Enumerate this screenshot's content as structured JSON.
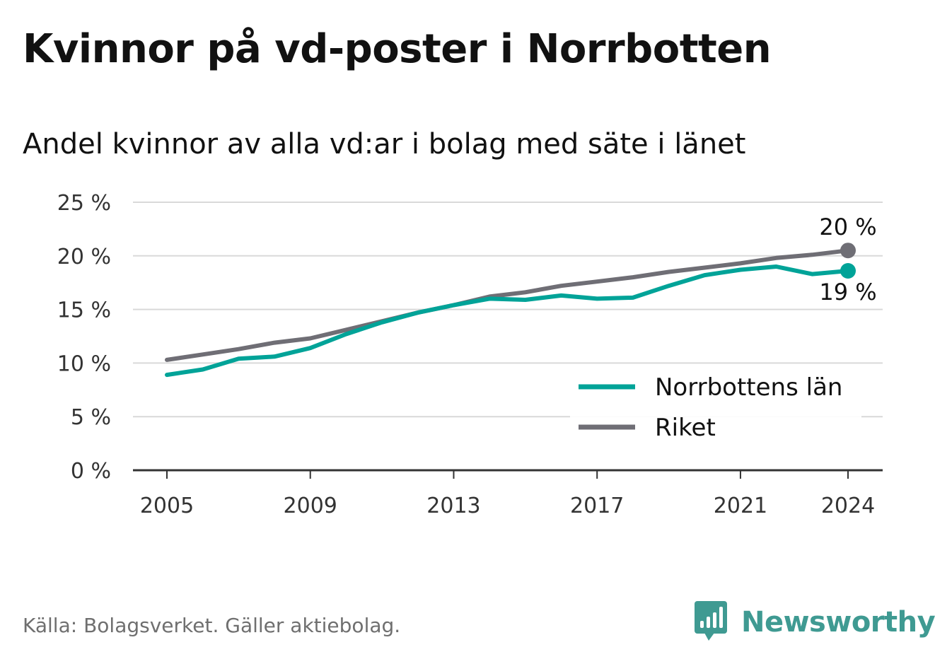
{
  "title": "Kvinnor på vd-poster i Norrbotten",
  "subtitle": "Andel kvinnor av alla vd:ar i bolag med säte i länet",
  "source": "Källa: Bolagsverket. Gäller aktiebolag.",
  "brand": {
    "name": "Newsworthy",
    "icon": "bar-chart-speech-bubble-icon",
    "color": "#3f9a92"
  },
  "chart_data": {
    "type": "line",
    "x": [
      2005,
      2006,
      2007,
      2008,
      2009,
      2010,
      2011,
      2012,
      2013,
      2014,
      2015,
      2016,
      2017,
      2018,
      2019,
      2020,
      2021,
      2022,
      2023,
      2024
    ],
    "x_ticks": [
      "2005",
      "2009",
      "2013",
      "2017",
      "2021",
      "2024"
    ],
    "y_ticks": [
      "0 %",
      "5 %",
      "10 %",
      "15 %",
      "20 %",
      "25 %"
    ],
    "ylim": [
      0,
      25
    ],
    "grid": true,
    "legend_position": "bottom-right",
    "series": [
      {
        "name": "Norrbottens län",
        "color": "#00a398",
        "values": [
          8.9,
          9.4,
          10.4,
          10.6,
          11.4,
          12.7,
          13.8,
          14.7,
          15.4,
          16.0,
          15.9,
          16.3,
          16.0,
          16.1,
          17.2,
          18.2,
          18.7,
          19.0,
          18.3,
          18.6
        ],
        "end_label": "19 %"
      },
      {
        "name": "Riket",
        "color": "#6f6e75",
        "values": [
          10.3,
          10.8,
          11.3,
          11.9,
          12.3,
          13.1,
          13.9,
          14.7,
          15.4,
          16.2,
          16.6,
          17.2,
          17.6,
          18.0,
          18.5,
          18.9,
          19.3,
          19.8,
          20.1,
          20.5
        ],
        "end_label": "20 %"
      }
    ]
  }
}
